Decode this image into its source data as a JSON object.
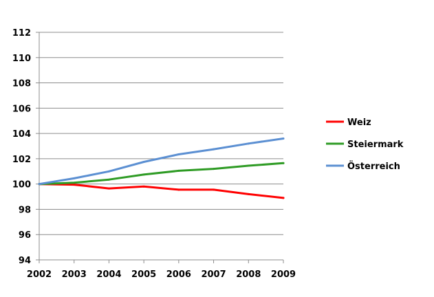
{
  "chart_data": {
    "type": "line",
    "title": "",
    "xlabel": "",
    "ylabel": "",
    "x": [
      "2002",
      "2003",
      "2004",
      "2005",
      "2006",
      "2007",
      "2008",
      "2009"
    ],
    "ylim": [
      94,
      112
    ],
    "yticks": [
      "94",
      "96",
      "98",
      "100",
      "102",
      "104",
      "106",
      "108",
      "110",
      "112"
    ],
    "grid": "horizontal",
    "legend_position": "right",
    "series": [
      {
        "name": "Weiz",
        "color": "#ff0000",
        "values": [
          100.0,
          99.95,
          99.65,
          99.8,
          99.55,
          99.55,
          99.2,
          98.9
        ]
      },
      {
        "name": "Steiermark",
        "color": "#2e9b24",
        "values": [
          100.0,
          100.1,
          100.35,
          100.75,
          101.05,
          101.2,
          101.45,
          101.65
        ]
      },
      {
        "name": "Österreich",
        "color": "#5b8fd2",
        "values": [
          100.0,
          100.45,
          101.0,
          101.75,
          102.35,
          102.75,
          103.2,
          103.6
        ]
      }
    ]
  }
}
